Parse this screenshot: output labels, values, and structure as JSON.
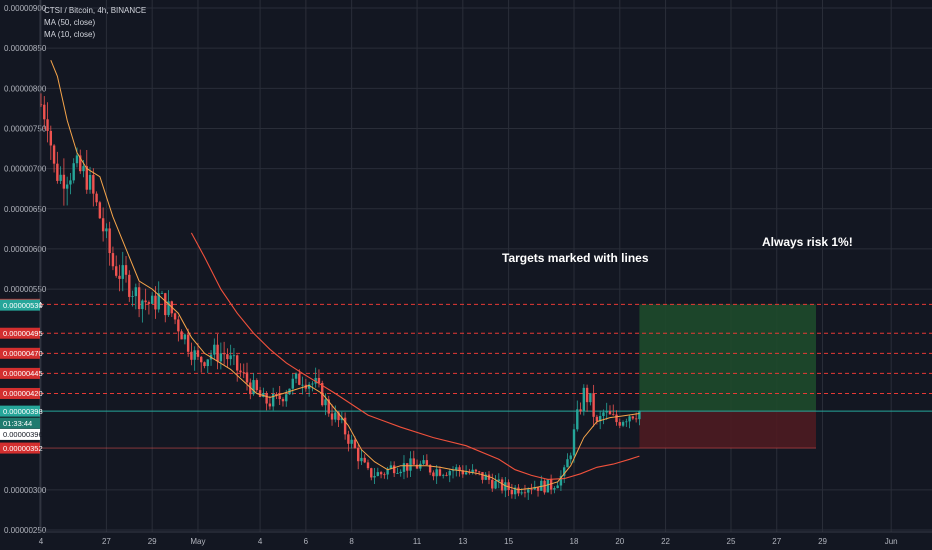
{
  "header": {
    "symbol": "CTSI / Bitcoin, 4h, BINANCE",
    "indicators": [
      "MA (50, close)",
      "MA (10, close)"
    ]
  },
  "annotations": {
    "targets": "Targets marked with lines",
    "risk": "Always risk 1%!"
  },
  "colors": {
    "background": "#131722",
    "up": "#26a69a",
    "down": "#ef5350",
    "ma50": "#f0513c",
    "ma10": "#f7a54a",
    "target_line": "#e53935",
    "price_line": "#26a69a",
    "profit_zone": "#1e4a2b",
    "loss_zone": "#4e1b21"
  },
  "chart_data": {
    "type": "candlestick",
    "title": "CTSI / Bitcoin, 4h, BINANCE",
    "y_ticks": [
      "0.00000900",
      "0.00000850",
      "0.00000800",
      "0.00000750",
      "0.00000700",
      "0.00000650",
      "0.00000600",
      "0.00000550",
      "0.00000300",
      "0.00000250"
    ],
    "x_ticks": [
      {
        "label": "4",
        "i": 0
      },
      {
        "label": "27",
        "i": 20
      },
      {
        "label": "29",
        "i": 34
      },
      {
        "label": "May",
        "i": 48
      },
      {
        "label": "4",
        "i": 67
      },
      {
        "label": "6",
        "i": 81
      },
      {
        "label": "8",
        "i": 95
      },
      {
        "label": "11",
        "i": 115
      },
      {
        "label": "13",
        "i": 129
      },
      {
        "label": "15",
        "i": 143
      },
      {
        "label": "18",
        "i": 163
      },
      {
        "label": "20",
        "i": 177
      },
      {
        "label": "22",
        "i": 191
      },
      {
        "label": "25",
        "i": 211
      },
      {
        "label": "27",
        "i": 225
      },
      {
        "label": "29",
        "i": 239
      },
      {
        "label": "Jun",
        "i": 260
      }
    ],
    "price_tags": [
      {
        "label": "0.00000531",
        "value": 5.31e-06,
        "kind": "target"
      },
      {
        "label": "0.00000530",
        "value": 5.3e-06,
        "kind": "up"
      },
      {
        "label": "0.00000495",
        "value": 4.95e-06,
        "kind": "target"
      },
      {
        "label": "0.00000470",
        "value": 4.7e-06,
        "kind": "target"
      },
      {
        "label": "0.00000445",
        "value": 4.45e-06,
        "kind": "target"
      },
      {
        "label": "0.00000420",
        "value": 4.2e-06,
        "kind": "target"
      },
      {
        "label": "0.00000398",
        "value": 3.98e-06,
        "kind": "current"
      },
      {
        "label": "01:33:44",
        "value": 3.83e-06,
        "kind": "countdown"
      },
      {
        "label": "0.00000396",
        "value": 3.69e-06,
        "kind": "neutral"
      },
      {
        "label": "0.00000352",
        "value": 3.52e-06,
        "kind": "stop"
      }
    ],
    "target_levels": [
      5.31e-06,
      4.95e-06,
      4.7e-06,
      4.45e-06,
      4.2e-06
    ],
    "current_price": 3.98e-06,
    "stop_loss": 3.52e-06,
    "position": {
      "entry": 3.98e-06,
      "target": 5.31e-06,
      "stop": 3.52e-06,
      "start_i": 183,
      "end_i": 237
    },
    "ylim": [
      2.4e-06,
      9.1e-06
    ],
    "anchors": [
      [
        0,
        7.8e-06
      ],
      [
        2,
        7.65e-06
      ],
      [
        4,
        7e-06
      ],
      [
        6,
        6.9e-06
      ],
      [
        10,
        7e-06
      ],
      [
        14,
        6.9e-06
      ],
      [
        18,
        6.4e-06
      ],
      [
        22,
        5.8e-06
      ],
      [
        26,
        5.6e-06
      ],
      [
        30,
        5.4e-06
      ],
      [
        34,
        5.3e-06
      ],
      [
        36,
        5.4e-06
      ],
      [
        40,
        5.2e-06
      ],
      [
        44,
        4.9e-06
      ],
      [
        48,
        4.6e-06
      ],
      [
        52,
        4.7e-06
      ],
      [
        56,
        4.7e-06
      ],
      [
        60,
        4.5e-06
      ],
      [
        64,
        4.3e-06
      ],
      [
        68,
        4.1e-06
      ],
      [
        72,
        4.1e-06
      ],
      [
        76,
        4.3e-06
      ],
      [
        80,
        4.4e-06
      ],
      [
        84,
        4.3e-06
      ],
      [
        88,
        4e-06
      ],
      [
        92,
        3.8e-06
      ],
      [
        96,
        3.5e-06
      ],
      [
        100,
        3.2e-06
      ],
      [
        104,
        3.2e-06
      ],
      [
        108,
        3.3e-06
      ],
      [
        112,
        3.3e-06
      ],
      [
        116,
        3.3e-06
      ],
      [
        120,
        3.25e-06
      ],
      [
        124,
        3.25e-06
      ],
      [
        128,
        3.25e-06
      ],
      [
        132,
        3.2e-06
      ],
      [
        136,
        3.15e-06
      ],
      [
        140,
        3.05e-06
      ],
      [
        144,
        3e-06
      ],
      [
        148,
        3.05e-06
      ],
      [
        152,
        3.05e-06
      ],
      [
        156,
        3.05e-06
      ],
      [
        160,
        3.2e-06
      ],
      [
        162,
        3.5e-06
      ],
      [
        164,
        3.9e-06
      ],
      [
        166,
        4.2e-06
      ],
      [
        168,
        4.1e-06
      ],
      [
        170,
        3.8e-06
      ],
      [
        172,
        3.95e-06
      ],
      [
        176,
        3.85e-06
      ],
      [
        180,
        3.95e-06
      ],
      [
        183,
        3.98e-06
      ]
    ],
    "ma50": [
      [
        46,
        6.2e-06
      ],
      [
        50,
        5.9e-06
      ],
      [
        55,
        5.5e-06
      ],
      [
        60,
        5.2e-06
      ],
      [
        65,
        4.95e-06
      ],
      [
        70,
        4.75e-06
      ],
      [
        75,
        4.58e-06
      ],
      [
        80,
        4.45e-06
      ],
      [
        90,
        4.2e-06
      ],
      [
        100,
        3.93e-06
      ],
      [
        110,
        3.78e-06
      ],
      [
        120,
        3.65e-06
      ],
      [
        130,
        3.55e-06
      ],
      [
        140,
        3.38e-06
      ],
      [
        145,
        3.25e-06
      ],
      [
        150,
        3.18e-06
      ],
      [
        155,
        3.13e-06
      ],
      [
        160,
        3.14e-06
      ],
      [
        165,
        3.2e-06
      ],
      [
        170,
        3.28e-06
      ],
      [
        175,
        3.32e-06
      ],
      [
        180,
        3.38e-06
      ],
      [
        183,
        3.42e-06
      ]
    ],
    "ma10": [
      [
        3,
        8.35e-06
      ],
      [
        5,
        8.15e-06
      ],
      [
        8,
        7.6e-06
      ],
      [
        11,
        7.2e-06
      ],
      [
        14,
        7e-06
      ],
      [
        18,
        6.9e-06
      ],
      [
        22,
        6.4e-06
      ],
      [
        26,
        6e-06
      ],
      [
        30,
        5.6e-06
      ],
      [
        34,
        5.5e-06
      ],
      [
        38,
        5.35e-06
      ],
      [
        42,
        5.2e-06
      ],
      [
        46,
        4.9e-06
      ],
      [
        50,
        4.7e-06
      ],
      [
        54,
        4.6e-06
      ],
      [
        58,
        4.5e-06
      ],
      [
        62,
        4.35e-06
      ],
      [
        66,
        4.2e-06
      ],
      [
        70,
        4.15e-06
      ],
      [
        74,
        4.2e-06
      ],
      [
        78,
        4.25e-06
      ],
      [
        82,
        4.3e-06
      ],
      [
        86,
        4.2e-06
      ],
      [
        90,
        4e-06
      ],
      [
        94,
        3.8e-06
      ],
      [
        98,
        3.5e-06
      ],
      [
        102,
        3.35e-06
      ],
      [
        106,
        3.25e-06
      ],
      [
        110,
        3.3e-06
      ],
      [
        114,
        3.3e-06
      ],
      [
        118,
        3.3e-06
      ],
      [
        122,
        3.28e-06
      ],
      [
        126,
        3.25e-06
      ],
      [
        130,
        3.23e-06
      ],
      [
        134,
        3.2e-06
      ],
      [
        138,
        3.15e-06
      ],
      [
        142,
        3.05e-06
      ],
      [
        146,
        3e-06
      ],
      [
        150,
        3.02e-06
      ],
      [
        154,
        3.05e-06
      ],
      [
        158,
        3.1e-06
      ],
      [
        162,
        3.3e-06
      ],
      [
        166,
        3.65e-06
      ],
      [
        170,
        3.85e-06
      ],
      [
        174,
        3.9e-06
      ],
      [
        178,
        3.92e-06
      ],
      [
        183,
        3.95e-06
      ]
    ]
  }
}
